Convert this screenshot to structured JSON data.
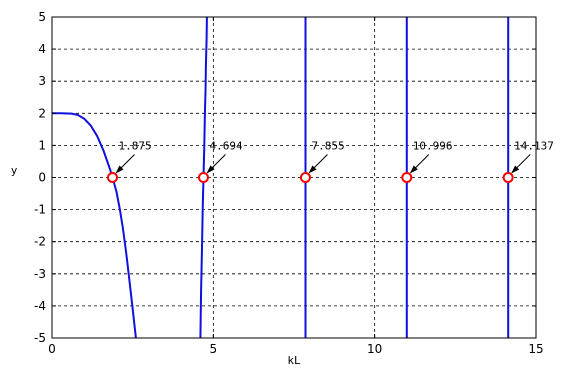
{
  "chart_data": {
    "type": "line",
    "title": "",
    "xlabel": "kL",
    "ylabel": "y",
    "xlim": [
      0,
      15
    ],
    "ylim": [
      -5,
      5
    ],
    "xticks": [
      0,
      5,
      10,
      15
    ],
    "yticks": [
      -5,
      -4,
      -3,
      -2,
      -1,
      0,
      1,
      2,
      3,
      4,
      5
    ],
    "grid": "dashed",
    "series": [
      {
        "color": "#1010e0",
        "x": [
          0,
          0.3,
          0.6,
          0.8,
          1.0,
          1.2,
          1.4,
          1.6,
          1.8,
          1.875,
          2.0,
          2.1,
          2.2,
          2.3,
          2.4,
          2.5,
          2.6
        ],
        "y": [
          2.0,
          2.0,
          1.99,
          1.95,
          1.83,
          1.62,
          1.29,
          0.83,
          0.25,
          0.0,
          -0.45,
          -0.98,
          -1.6,
          -2.35,
          -3.2,
          -4.1,
          -5.0
        ]
      },
      {
        "color": "#1010e0",
        "x": [
          4.6,
          4.62,
          4.65,
          4.67,
          4.694,
          4.72,
          4.74,
          4.76,
          4.77,
          4.79,
          4.8
        ],
        "y": [
          -5.0,
          -3.5,
          -2.2,
          -1.0,
          0.0,
          1.0,
          2.0,
          2.8,
          3.5,
          4.3,
          5.0
        ]
      },
      {
        "color": "#1010e0",
        "x": [
          7.855,
          7.855
        ],
        "y": [
          -5.0,
          5.0
        ]
      },
      {
        "color": "#1010e0",
        "x": [
          10.996,
          10.996
        ],
        "y": [
          -5.0,
          5.0
        ]
      },
      {
        "color": "#1010e0",
        "x": [
          14.137,
          14.137
        ],
        "y": [
          -5.0,
          5.0
        ]
      }
    ],
    "roots": [
      {
        "x": 1.875,
        "y": 0,
        "label": "1.875"
      },
      {
        "x": 4.694,
        "y": 0,
        "label": "4.694"
      },
      {
        "x": 7.855,
        "y": 0,
        "label": "7.855"
      },
      {
        "x": 10.996,
        "y": 0,
        "label": "10.996"
      },
      {
        "x": 14.137,
        "y": 0,
        "label": "14.137"
      }
    ],
    "marker_color": "#ff0000"
  }
}
